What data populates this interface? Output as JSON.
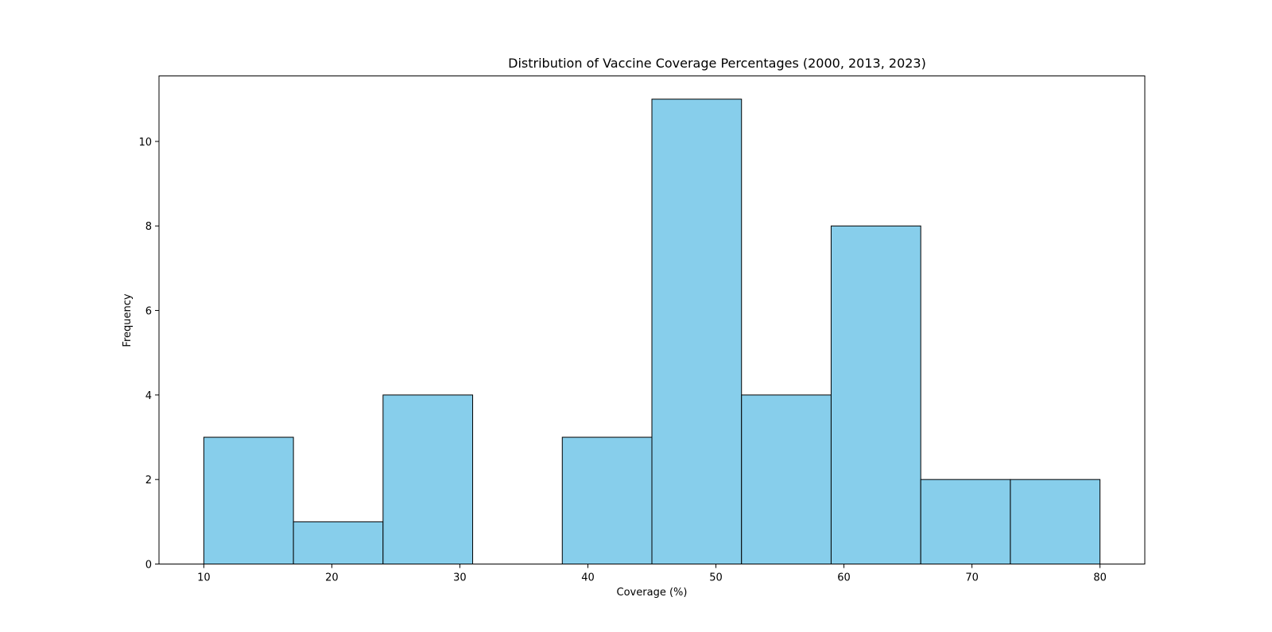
{
  "chart_data": {
    "type": "bar",
    "title": "Distribution of Vaccine Coverage Percentages (2000, 2013, 2023)",
    "xlabel": "Coverage (%)",
    "ylabel": "Frequency",
    "bins": [
      {
        "start": 10,
        "end": 17,
        "count": 3
      },
      {
        "start": 17,
        "end": 24,
        "count": 1
      },
      {
        "start": 24,
        "end": 31,
        "count": 4
      },
      {
        "start": 31,
        "end": 38,
        "count": 0
      },
      {
        "start": 38,
        "end": 45,
        "count": 3
      },
      {
        "start": 45,
        "end": 52,
        "count": 11
      },
      {
        "start": 52,
        "end": 59,
        "count": 4
      },
      {
        "start": 59,
        "end": 66,
        "count": 8
      },
      {
        "start": 66,
        "end": 73,
        "count": 2
      },
      {
        "start": 73,
        "end": 80,
        "count": 2
      }
    ],
    "xlim": [
      6.5,
      83.5
    ],
    "ylim": [
      0,
      11.55
    ],
    "xticks": [
      10,
      20,
      30,
      40,
      50,
      60,
      70,
      80
    ],
    "yticks": [
      0,
      2,
      4,
      6,
      8,
      10
    ],
    "grid": false,
    "colors": {
      "bar_fill": "#87CEEB",
      "bar_edge": "#000000"
    }
  }
}
